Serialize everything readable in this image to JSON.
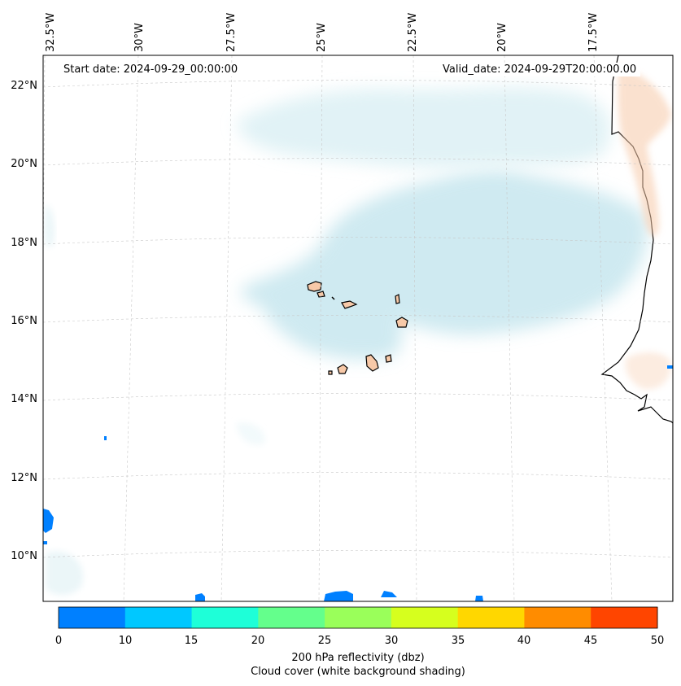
{
  "title_left": "Start date: 2024-09-29_00:00:00",
  "title_right": "Valid_date: 2024-09-29T20:00:00.00",
  "longitude_labels": [
    "32.5°W",
    "30°W",
    "27.5°W",
    "25°W",
    "22.5°W",
    "20°W",
    "17.5°W"
  ],
  "latitude_labels": [
    "22°N",
    "20°N",
    "18°N",
    "16°N",
    "14°N",
    "12°N",
    "10°N"
  ],
  "colorbar": {
    "ticks": [
      "0",
      "10",
      "15",
      "20",
      "25",
      "30",
      "35",
      "40",
      "45",
      "50"
    ],
    "colors": [
      "#0080ff",
      "#00c8ff",
      "#1effd8",
      "#64ff8c",
      "#9aff5a",
      "#d6ff1e",
      "#ffd700",
      "#ff8c00",
      "#ff4500"
    ],
    "label_line1": "200 hPa reflectivity (dbz)",
    "label_line2": "Cloud cover (white background shading)"
  },
  "map_colors": {
    "cloud": "#bfe3ec",
    "land": "#f7c9a8",
    "reflectivity": "#0080ff",
    "grid": "#cccccc"
  }
}
